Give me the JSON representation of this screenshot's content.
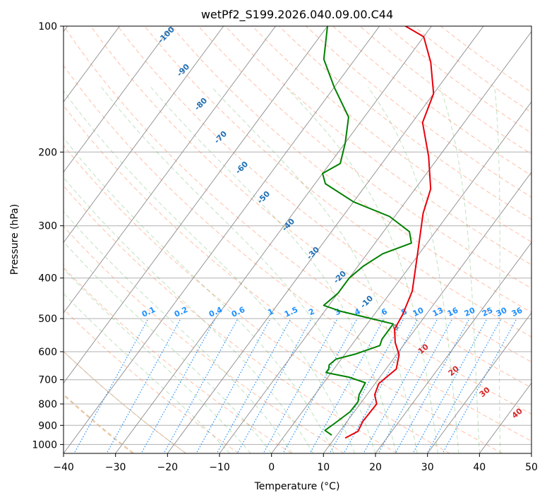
{
  "chart_data": {
    "type": "line",
    "title": "wetPf2_S199.2026.040.09.00.C44",
    "xlabel": "Temperature (°C)",
    "ylabel": "Pressure (hPa)",
    "xlim": [
      -40,
      50
    ],
    "ylim": [
      1050,
      100
    ],
    "y_scale": "log",
    "grid": true,
    "x_ticks": [
      -40,
      -30,
      -20,
      -10,
      0,
      10,
      20,
      30,
      40,
      50
    ],
    "y_ticks": [
      100,
      200,
      300,
      400,
      500,
      600,
      700,
      800,
      900,
      1000
    ],
    "series": [
      {
        "name": "",
        "color": "#e8000b",
        "points": [
          [
            12,
            965
          ],
          [
            13.5,
            930
          ],
          [
            13,
            880
          ],
          [
            13.2,
            800
          ],
          [
            11.5,
            760
          ],
          [
            10.7,
            715
          ],
          [
            12,
            660
          ],
          [
            10.5,
            610
          ],
          [
            8,
            570
          ],
          [
            6,
            530
          ],
          [
            5.5,
            490
          ],
          [
            4,
            430
          ],
          [
            0,
            355
          ],
          [
            -5,
            280
          ],
          [
            -7,
            245
          ],
          [
            -12,
            205
          ],
          [
            -18,
            170
          ],
          [
            -20,
            145
          ],
          [
            -25,
            122
          ],
          [
            -30,
            106
          ],
          [
            -35,
            100
          ]
        ]
      },
      {
        "name": "",
        "color": "#008000",
        "points": [
          [
            9,
            950
          ],
          [
            7,
            925
          ],
          [
            8,
            885
          ],
          [
            9.2,
            835
          ],
          [
            9.3,
            790
          ],
          [
            8.5,
            760
          ],
          [
            8,
            712
          ],
          [
            4,
            690
          ],
          [
            -1,
            673
          ],
          [
            -1,
            660
          ],
          [
            -1.5,
            645
          ],
          [
            -1,
            625
          ],
          [
            2,
            608
          ],
          [
            5.5,
            580
          ],
          [
            5,
            560
          ],
          [
            5,
            515
          ],
          [
            -1,
            497
          ],
          [
            -7,
            480
          ],
          [
            -11,
            465
          ],
          [
            -10,
            435
          ],
          [
            -10,
            400
          ],
          [
            -9,
            375
          ],
          [
            -7,
            350
          ],
          [
            -3,
            330
          ],
          [
            -5,
            310
          ],
          [
            -11,
            285
          ],
          [
            -20,
            263
          ],
          [
            -28,
            238
          ],
          [
            -30,
            225
          ],
          [
            -28,
            213
          ],
          [
            -30,
            190
          ],
          [
            -33,
            165
          ],
          [
            -40,
            140
          ],
          [
            -46,
            120
          ],
          [
            -50,
            100
          ]
        ]
      }
    ],
    "dry_adiabat_labels": [
      -100,
      -90,
      -80,
      -70,
      -60,
      -50,
      -40,
      -30,
      -20,
      -10
    ],
    "moist_adiabat_labels": [
      10,
      20,
      30,
      40
    ],
    "mixing_ratio_labels": [
      "0.1",
      "0.2",
      "0.4",
      "0.6",
      "1",
      "1.5",
      "2",
      "3",
      "4",
      "6",
      "8",
      "10",
      "13",
      "16",
      "20",
      "25",
      "30",
      "36"
    ],
    "zero_label": "0",
    "colors": {
      "temperature": "#e8000b",
      "dewpoint": "#008000",
      "dry_adiabats": "#ff6a3d",
      "moist_adiabats": "#2ca02c",
      "mixing_ratio": "#1e8fff",
      "isotherms": "#808080"
    }
  }
}
